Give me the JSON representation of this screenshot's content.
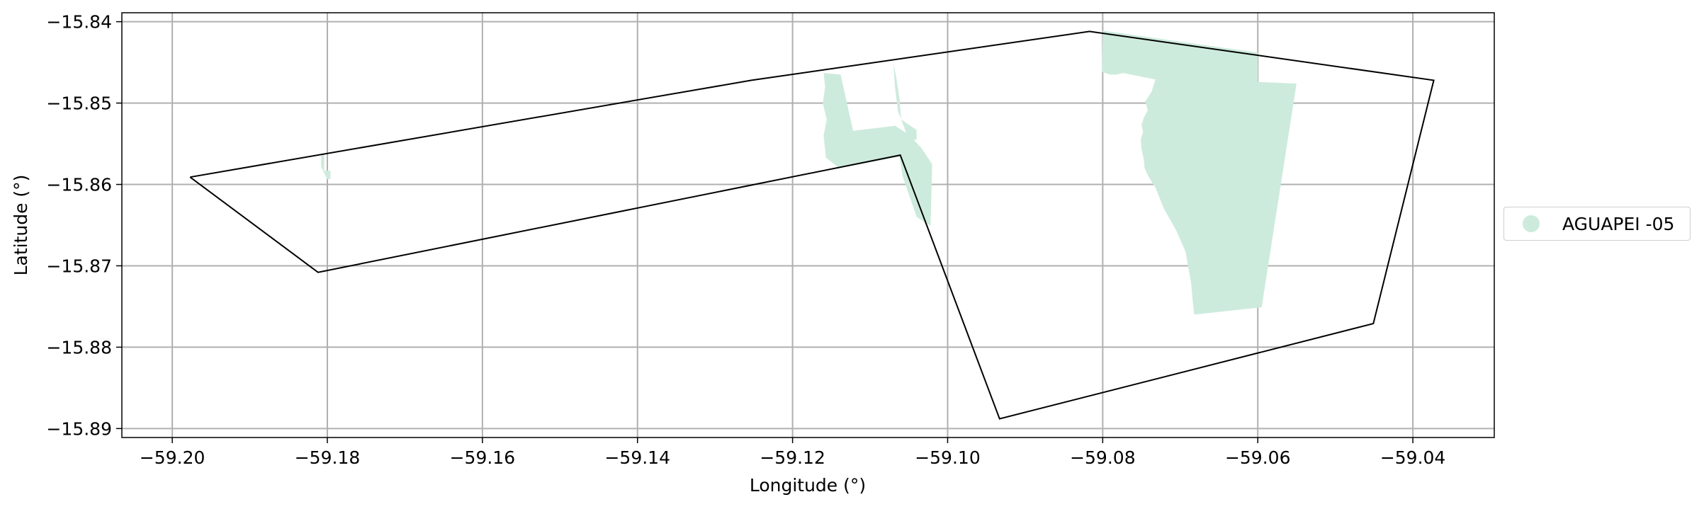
{
  "chart_data": {
    "type": "map",
    "xlabel": "Longitude (°)",
    "ylabel": "Latitude (°)",
    "xlim": [
      -59.2065,
      -59.0295
    ],
    "ylim": [
      -15.8911,
      -15.8389
    ],
    "xticks": [
      -59.2,
      -59.18,
      -59.16,
      -59.14,
      -59.12,
      -59.1,
      -59.08,
      -59.06,
      -59.04
    ],
    "xtick_labels": [
      "−59.20",
      "−59.18",
      "−59.16",
      "−59.14",
      "−59.12",
      "−59.10",
      "−59.08",
      "−59.06",
      "−59.04"
    ],
    "yticks": [
      -15.84,
      -15.85,
      -15.86,
      -15.87,
      -15.88,
      -15.89
    ],
    "ytick_labels": [
      "−15.84",
      "−15.85",
      "−15.86",
      "−15.87",
      "−15.88",
      "−15.89"
    ],
    "grid": true,
    "legend": {
      "placement": "right, outside plot",
      "entries": [
        {
          "label": "AGUAPEI -05",
          "color": "#cdebdd"
        }
      ]
    },
    "boundary": {
      "color": "#000000",
      "points": [
        [
          -59.1977,
          -15.8591
        ],
        [
          -59.1253,
          -15.8472
        ],
        [
          -59.0817,
          -15.8412
        ],
        [
          -59.0373,
          -15.8472
        ],
        [
          -59.0451,
          -15.8771
        ],
        [
          -59.0933,
          -15.8888
        ],
        [
          -59.1061,
          -15.8564
        ],
        [
          -59.1812,
          -15.8708
        ],
        [
          -59.1977,
          -15.8591
        ]
      ]
    },
    "fill_color": "#cdebdd",
    "fill_areas": [
      {
        "name": "AGUAPEI -05",
        "points": [
          [
            -59.08,
            -15.8411
          ],
          [
            -59.06,
            -15.8438
          ],
          [
            -59.06,
            -15.8474
          ],
          [
            -59.055,
            -15.8476
          ],
          [
            -59.0595,
            -15.8751
          ],
          [
            -59.0682,
            -15.876
          ],
          [
            -59.0684,
            -15.8743
          ],
          [
            -59.0686,
            -15.8721
          ],
          [
            -59.069,
            -15.87
          ],
          [
            -59.0693,
            -15.8683
          ],
          [
            -59.0705,
            -15.8657
          ],
          [
            -59.0721,
            -15.863
          ],
          [
            -59.0732,
            -15.8604
          ],
          [
            -59.074,
            -15.8592
          ],
          [
            -59.0746,
            -15.858
          ],
          [
            -59.0747,
            -15.857
          ],
          [
            -59.075,
            -15.8556
          ],
          [
            -59.0751,
            -15.8545
          ],
          [
            -59.0748,
            -15.8535
          ],
          [
            -59.075,
            -15.8527
          ],
          [
            -59.0747,
            -15.8518
          ],
          [
            -59.0742,
            -15.8509
          ],
          [
            -59.0745,
            -15.8498
          ],
          [
            -59.0737,
            -15.8486
          ],
          [
            -59.0732,
            -15.8471
          ],
          [
            -59.0774,
            -15.8463
          ],
          [
            -59.0782,
            -15.8465
          ],
          [
            -59.079,
            -15.8465
          ],
          [
            -59.0801,
            -15.8462
          ]
        ]
      },
      {
        "name": "AGUAPEI -05",
        "points": [
          [
            -59.116,
            -15.8463
          ],
          [
            -59.1138,
            -15.8465
          ],
          [
            -59.1122,
            -15.8534
          ],
          [
            -59.1068,
            -15.8528
          ],
          [
            -59.1051,
            -15.8538
          ],
          [
            -59.1034,
            -15.8555
          ],
          [
            -59.102,
            -15.8575
          ],
          [
            -59.1022,
            -15.8651
          ],
          [
            -59.104,
            -15.864
          ],
          [
            -59.1058,
            -15.859
          ],
          [
            -59.1062,
            -15.8566
          ],
          [
            -59.114,
            -15.858
          ],
          [
            -59.1157,
            -15.8567
          ],
          [
            -59.116,
            -15.854
          ],
          [
            -59.1156,
            -15.852
          ],
          [
            -59.1161,
            -15.85
          ],
          [
            -59.1158,
            -15.848
          ]
        ]
      },
      {
        "name": "AGUAPEI -05",
        "points": [
          [
            -59.107,
            -15.845
          ],
          [
            -59.1066,
            -15.847
          ],
          [
            -59.1062,
            -15.8495
          ],
          [
            -59.106,
            -15.852
          ],
          [
            -59.1054,
            -15.8524
          ],
          [
            -59.104,
            -15.8533
          ],
          [
            -59.104,
            -15.8545
          ],
          [
            -59.105,
            -15.8546
          ],
          [
            -59.1056,
            -15.853
          ],
          [
            -59.1064,
            -15.851
          ],
          [
            -59.1068,
            -15.848
          ]
        ]
      },
      {
        "name": "AGUAPEI -05",
        "points": [
          [
            -59.1808,
            -15.8563
          ],
          [
            -59.1804,
            -15.8563
          ],
          [
            -59.1804,
            -15.8583
          ],
          [
            -59.1796,
            -15.8583
          ],
          [
            -59.1796,
            -15.8593
          ],
          [
            -59.18,
            -15.8594
          ],
          [
            -59.1808,
            -15.8578
          ]
        ]
      }
    ]
  }
}
